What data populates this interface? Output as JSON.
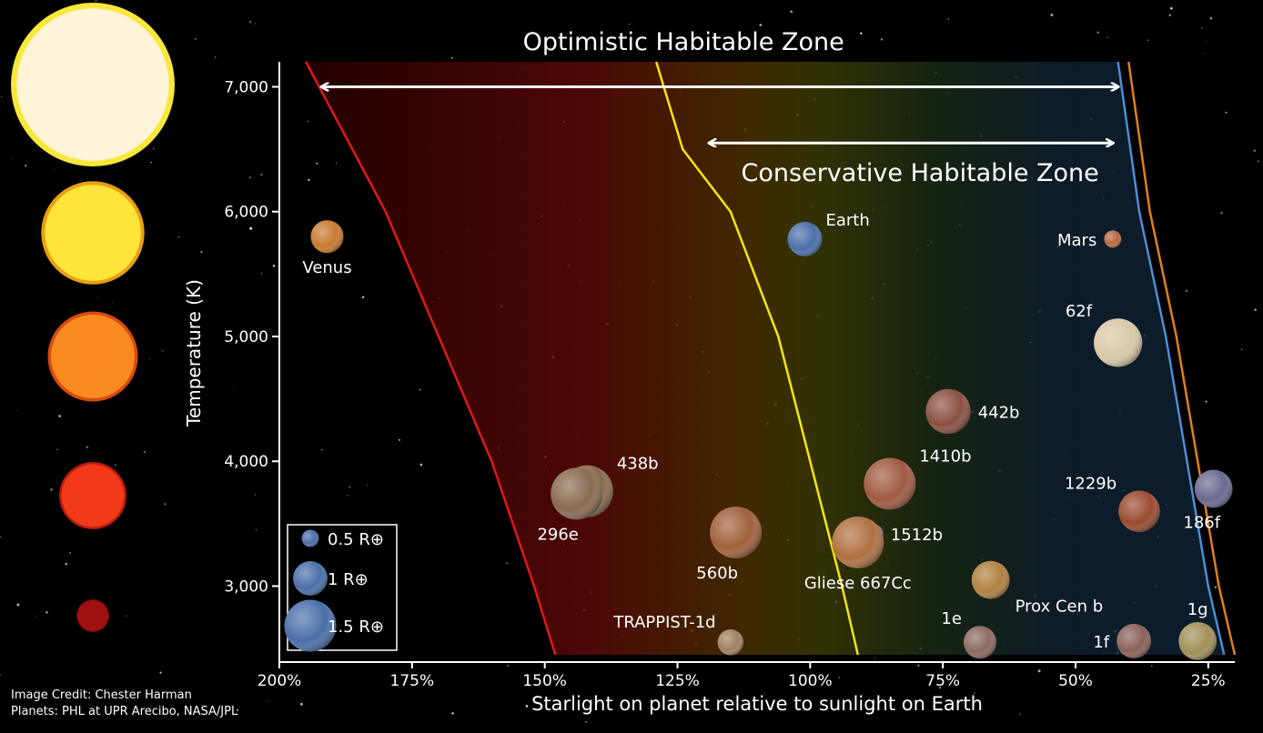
{
  "chart_data": {
    "type": "scatter",
    "xlabel": "Starlight on planet relative to sunlight on Earth",
    "ylabel": "Temperature (K)",
    "xlim": [
      200,
      20
    ],
    "ylim": [
      2450,
      7200
    ],
    "x_ticks": [
      {
        "value": 200,
        "label": "200%"
      },
      {
        "value": 175,
        "label": "175%"
      },
      {
        "value": 150,
        "label": "150%"
      },
      {
        "value": 125,
        "label": "125%"
      },
      {
        "value": 100,
        "label": "100%"
      },
      {
        "value": 75,
        "label": "75%"
      },
      {
        "value": 50,
        "label": "50%"
      },
      {
        "value": 25,
        "label": "25%"
      }
    ],
    "y_ticks": [
      {
        "value": 3000,
        "label": "3,000"
      },
      {
        "value": 4000,
        "label": "4,000"
      },
      {
        "value": 5000,
        "label": "5,000"
      },
      {
        "value": 6000,
        "label": "6,000"
      },
      {
        "value": 7000,
        "label": "7,000"
      }
    ],
    "zones": [
      {
        "label": "Optimistic Habitable Zone",
        "from": 192,
        "to": 42,
        "temp": 7000
      },
      {
        "label": "Conservative Habitable Zone",
        "from": 119,
        "to": 43,
        "temp": 6550
      }
    ],
    "boundaries": [
      {
        "color": "#e01818",
        "points": [
          [
            195,
            7200
          ],
          [
            190,
            6800
          ],
          [
            180,
            6000
          ],
          [
            170,
            5000
          ],
          [
            160,
            4000
          ],
          [
            152,
            3000
          ],
          [
            148,
            2450
          ]
        ]
      },
      {
        "color": "#f5e60a",
        "points": [
          [
            129,
            7200
          ],
          [
            124,
            6500
          ],
          [
            115,
            6000
          ],
          [
            106,
            5000
          ],
          [
            100,
            4000
          ],
          [
            94,
            3000
          ],
          [
            91,
            2450
          ]
        ]
      },
      {
        "color": "#4a8fd6",
        "points": [
          [
            42,
            7200
          ],
          [
            38,
            6000
          ],
          [
            33,
            5000
          ],
          [
            29,
            4000
          ],
          [
            25,
            3000
          ],
          [
            22,
            2450
          ]
        ]
      },
      {
        "color": "#e0801a",
        "points": [
          [
            40,
            7200
          ],
          [
            36,
            6000
          ],
          [
            31,
            5000
          ],
          [
            27,
            4000
          ],
          [
            23,
            3000
          ],
          [
            20,
            2450
          ]
        ]
      }
    ],
    "planets": [
      {
        "name": "Venus",
        "x": 191,
        "y": 5800,
        "r": 0.95,
        "color": "#c97a30",
        "label_pos": "below"
      },
      {
        "name": "Earth",
        "x": 101,
        "y": 5780,
        "r": 1.0,
        "color": "#4a6fa8",
        "label_pos": "right-above"
      },
      {
        "name": "Mars",
        "x": 43,
        "y": 5780,
        "r": 0.5,
        "color": "#b86a40",
        "label_pos": "left"
      },
      {
        "name": "62f",
        "x": 42,
        "y": 4950,
        "r": 1.4,
        "color": "#d9c8a8",
        "label_pos": "left-above"
      },
      {
        "name": "442b",
        "x": 74,
        "y": 4400,
        "r": 1.3,
        "color": "#8a5040",
        "label_pos": "right"
      },
      {
        "name": "1410b",
        "x": 85,
        "y": 3820,
        "r": 1.5,
        "color": "#a05a40",
        "label_pos": "right-above"
      },
      {
        "name": "1229b",
        "x": 38,
        "y": 3600,
        "r": 1.2,
        "color": "#9a4a30",
        "label_pos": "left-above"
      },
      {
        "name": "186f",
        "x": 24,
        "y": 3780,
        "r": 1.1,
        "color": "#6a6a90",
        "label_pos": "below-left"
      },
      {
        "name": "438b",
        "x": 142,
        "y": 3760,
        "r": 1.5,
        "color": "#8a6a50",
        "label_pos": "right-above"
      },
      {
        "name": "296e",
        "x": 144,
        "y": 3740,
        "r": 1.5,
        "color": "#8a6a50",
        "label_pos": "below-left"
      },
      {
        "name": "560b",
        "x": 114,
        "y": 3430,
        "r": 1.5,
        "color": "#a0603a",
        "label_pos": "below-left"
      },
      {
        "name": "1512b",
        "x": 88,
        "y": 3420,
        "r": 0.55,
        "color": "#7a6a80",
        "label_pos": "right"
      },
      {
        "name": "Gliese 667Cc",
        "x": 91,
        "y": 3350,
        "r": 1.5,
        "color": "#b07040",
        "label_pos": "below"
      },
      {
        "name": "Prox Cen b",
        "x": 66,
        "y": 3050,
        "r": 1.1,
        "color": "#b08040",
        "label_pos": "right-below"
      },
      {
        "name": "TRAPPIST-1d",
        "x": 115,
        "y": 2550,
        "r": 0.75,
        "color": "#a08060",
        "label_pos": "left-above"
      },
      {
        "name": "1e",
        "x": 68,
        "y": 2550,
        "r": 0.95,
        "color": "#8a6a60",
        "label_pos": "left-above"
      },
      {
        "name": "1f",
        "x": 39,
        "y": 2560,
        "r": 1.0,
        "color": "#8a6058",
        "label_pos": "left"
      },
      {
        "name": "1g",
        "x": 27,
        "y": 2560,
        "r": 1.1,
        "color": "#a09058",
        "label_pos": "above"
      }
    ],
    "size_legend": [
      {
        "label": "0.5 R⊕",
        "r": 0.5
      },
      {
        "label": "1 R⊕",
        "r": 1.0
      },
      {
        "label": "1.5 R⊕",
        "r": 1.5
      }
    ],
    "stars": [
      {
        "color": "#fff3d8",
        "rim": "#f7e83a",
        "size": 1.0
      },
      {
        "color": "#ffe43a",
        "rim": "#e8a010",
        "size": 0.63
      },
      {
        "color": "#f88a20",
        "rim": "#d84a10",
        "size": 0.55
      },
      {
        "color": "#f23a18",
        "rim": "#c01a10",
        "size": 0.41
      },
      {
        "color": "#a01010",
        "rim": "#7a0808",
        "size": 0.2
      }
    ]
  },
  "credits": {
    "line1": "Image Credit: Chester Harman",
    "line2": "Planets:  PHL at UPR Arecibo, NASA/JPL"
  }
}
